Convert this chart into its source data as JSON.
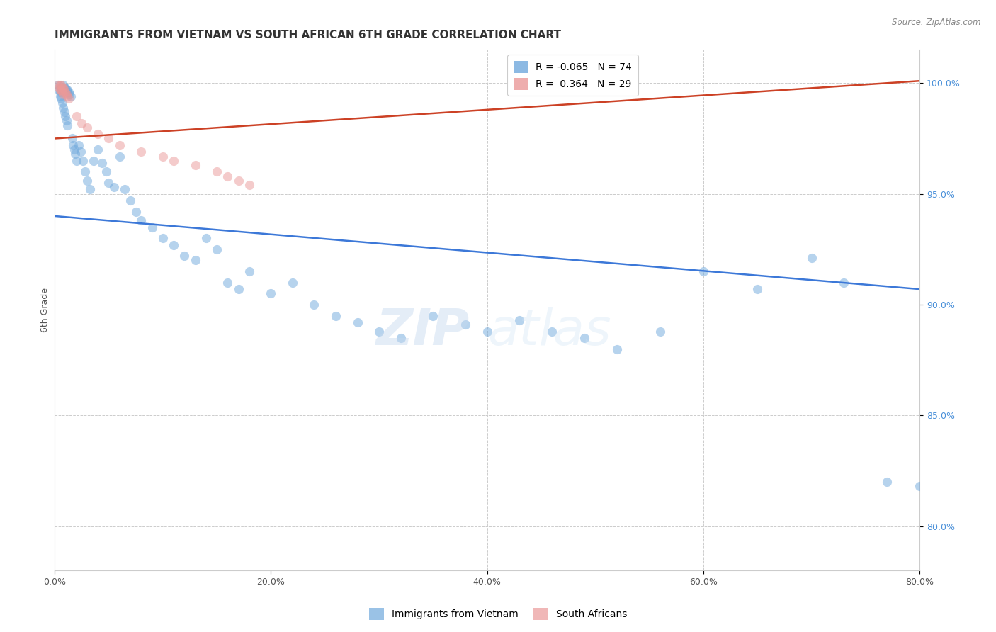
{
  "title": "IMMIGRANTS FROM VIETNAM VS SOUTH AFRICAN 6TH GRADE CORRELATION CHART",
  "source": "Source: ZipAtlas.com",
  "ylabel": "6th Grade",
  "watermark": "ZIPatlas",
  "legend_blue_r": "-0.065",
  "legend_blue_n": "74",
  "legend_pink_r": "0.364",
  "legend_pink_n": "29",
  "xlim": [
    0.0,
    0.8
  ],
  "ylim": [
    0.78,
    1.015
  ],
  "blue_color": "#6fa8dc",
  "pink_color": "#ea9999",
  "trendline_blue": "#3c78d8",
  "trendline_pink": "#cc4125",
  "blue_x": [
    0.003,
    0.004,
    0.005,
    0.005,
    0.006,
    0.006,
    0.007,
    0.007,
    0.008,
    0.008,
    0.009,
    0.009,
    0.01,
    0.01,
    0.011,
    0.011,
    0.012,
    0.012,
    0.013,
    0.014,
    0.015,
    0.016,
    0.017,
    0.018,
    0.019,
    0.02,
    0.022,
    0.024,
    0.026,
    0.028,
    0.03,
    0.033,
    0.036,
    0.04,
    0.044,
    0.048,
    0.05,
    0.055,
    0.06,
    0.065,
    0.07,
    0.075,
    0.08,
    0.09,
    0.1,
    0.11,
    0.12,
    0.13,
    0.14,
    0.15,
    0.16,
    0.17,
    0.18,
    0.2,
    0.22,
    0.24,
    0.26,
    0.28,
    0.3,
    0.32,
    0.35,
    0.38,
    0.4,
    0.43,
    0.46,
    0.49,
    0.52,
    0.56,
    0.6,
    0.65,
    0.7,
    0.73,
    0.77,
    0.8
  ],
  "blue_y": [
    0.999,
    0.997,
    0.996,
    0.994,
    0.998,
    0.993,
    0.997,
    0.991,
    0.999,
    0.989,
    0.998,
    0.987,
    0.998,
    0.985,
    0.997,
    0.983,
    0.997,
    0.981,
    0.996,
    0.995,
    0.994,
    0.975,
    0.972,
    0.97,
    0.968,
    0.965,
    0.972,
    0.969,
    0.965,
    0.96,
    0.956,
    0.952,
    0.965,
    0.97,
    0.964,
    0.96,
    0.955,
    0.953,
    0.967,
    0.952,
    0.947,
    0.942,
    0.938,
    0.935,
    0.93,
    0.927,
    0.922,
    0.92,
    0.93,
    0.925,
    0.91,
    0.907,
    0.915,
    0.905,
    0.91,
    0.9,
    0.895,
    0.892,
    0.888,
    0.885,
    0.895,
    0.891,
    0.888,
    0.893,
    0.888,
    0.885,
    0.88,
    0.888,
    0.915,
    0.907,
    0.921,
    0.91,
    0.82,
    0.818
  ],
  "pink_x": [
    0.003,
    0.004,
    0.005,
    0.005,
    0.006,
    0.006,
    0.007,
    0.007,
    0.008,
    0.008,
    0.009,
    0.01,
    0.011,
    0.012,
    0.013,
    0.02,
    0.025,
    0.03,
    0.04,
    0.05,
    0.06,
    0.08,
    0.1,
    0.11,
    0.13,
    0.15,
    0.16,
    0.17,
    0.18
  ],
  "pink_y": [
    0.999,
    0.998,
    0.999,
    0.997,
    0.999,
    0.997,
    0.998,
    0.996,
    0.998,
    0.995,
    0.997,
    0.996,
    0.995,
    0.994,
    0.993,
    0.985,
    0.982,
    0.98,
    0.977,
    0.975,
    0.972,
    0.969,
    0.967,
    0.965,
    0.963,
    0.96,
    0.958,
    0.956,
    0.954
  ],
  "blue_trendline_x": [
    0.0,
    0.8
  ],
  "blue_trendline_y": [
    0.94,
    0.907
  ],
  "pink_trendline_x": [
    0.0,
    0.8
  ],
  "pink_trendline_y": [
    0.975,
    1.001
  ],
  "title_fontsize": 11,
  "axis_label_fontsize": 9,
  "tick_fontsize": 9,
  "source_fontsize": 8.5,
  "legend_fontsize": 10,
  "marker_size": 90,
  "marker_alpha": 0.5,
  "background_color": "#ffffff",
  "grid_color": "#cccccc"
}
